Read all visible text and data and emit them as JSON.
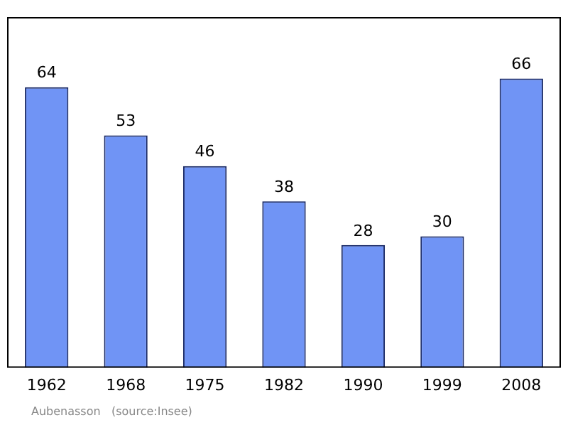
{
  "chart_data": {
    "type": "bar",
    "categories": [
      "1962",
      "1968",
      "1975",
      "1982",
      "1990",
      "1999",
      "2008"
    ],
    "values": [
      64,
      53,
      46,
      38,
      28,
      30,
      66
    ],
    "color": "#7094f5",
    "data_labels": true,
    "grid": false,
    "legend": false,
    "annotations": [
      "Aubenasson   (source:Insee)"
    ]
  }
}
